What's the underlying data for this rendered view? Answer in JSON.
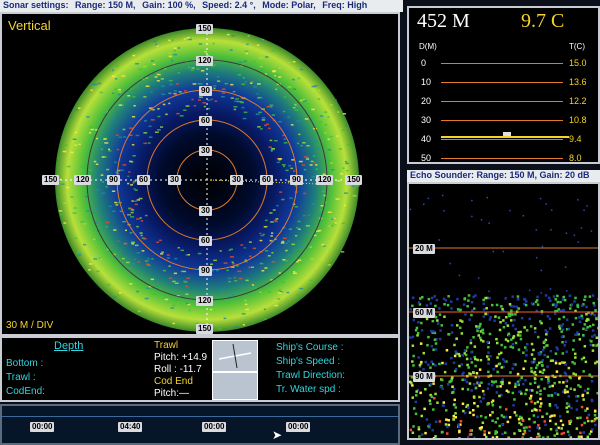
{
  "sonar_bar": {
    "label": "Sonar settings:",
    "range": "Range: 150 M,",
    "gain": "Gain: 100 %,",
    "speed": "Speed: 2.4 °,",
    "mode": "Mode: Polar,",
    "freq": "Freq: High"
  },
  "sonar": {
    "title": "Vertical",
    "scale": "30 M / DIV",
    "ticks": {
      "top": [
        "150",
        "120",
        "90",
        "60",
        "30"
      ],
      "bottom": [
        "30",
        "60",
        "90",
        "120",
        "150"
      ],
      "left": [
        "150",
        "120",
        "90",
        "60",
        "30"
      ],
      "right": [
        "30",
        "60",
        "90",
        "120",
        "150"
      ]
    }
  },
  "info": {
    "depth_title": "Depth",
    "bottom_label": "Bottom :",
    "trawl_label": "Trawl :",
    "codend_label": "CodEnd:",
    "trawl_title": "Trawl",
    "pitch_label": "Pitch:",
    "pitch_value": "+14.9",
    "roll_label": "Roll :",
    "roll_value": "-11.7",
    "codend_title": "Cod End",
    "codend_pitch": "Pitch:—",
    "ships_course": "Ship's Course :",
    "ships_speed": "Ship's Speed :",
    "trawl_direction": "Trawl Direction:",
    "water_spd": "Tr. Water spd :"
  },
  "timeline": {
    "marks": [
      "00:00",
      "04:40",
      "00:00",
      "00:00"
    ]
  },
  "depth_panel": {
    "depth": "452 M",
    "temp": "9.7 C",
    "left_unit": "D(M)",
    "right_unit": "T(C)",
    "rows": [
      {
        "d": "0",
        "t": "15.0"
      },
      {
        "d": "10",
        "t": "13.6"
      },
      {
        "d": "20",
        "t": "12.2"
      },
      {
        "d": "30",
        "t": "10.8"
      },
      {
        "d": "40",
        "t": "9.4"
      },
      {
        "d": "50",
        "t": "8.0"
      }
    ]
  },
  "echo": {
    "bar": "Echo Sounder: Range: 150 M, Gain: 20 dB",
    "marks": [
      "20 M",
      "60 M",
      "90 M"
    ]
  },
  "colors": {
    "accent": "#f5d32a",
    "grid": "#e07a2a",
    "ring": "#ff5a2a"
  }
}
